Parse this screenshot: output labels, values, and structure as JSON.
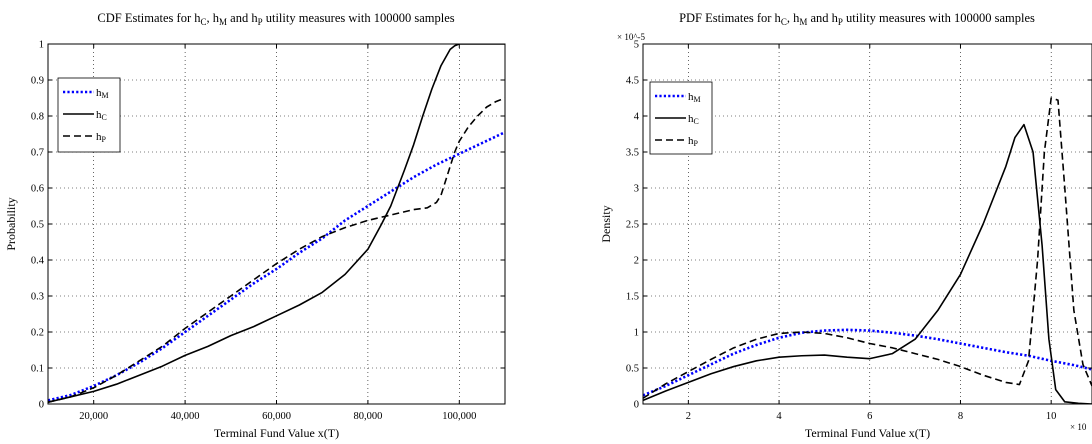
{
  "chart_data": [
    {
      "type": "line",
      "title": "CDF Estimates for h_C, h_M and h_P utility measures with 100000 samples",
      "title_parts": [
        "CDF Estimates for h",
        "C",
        ", h",
        "M",
        " and h",
        "P",
        " utility measures with 100000 samples"
      ],
      "xlabel": "Terminal Fund Value x(T)",
      "ylabel": "Probability",
      "xlim": [
        10000,
        110000
      ],
      "ylim": [
        0,
        1
      ],
      "x_ticks": [
        20000,
        40000,
        60000,
        80000,
        100000
      ],
      "x_tick_labels": [
        "20,000",
        "40,000",
        "60,000",
        "80,000",
        "100,000"
      ],
      "y_ticks": [
        0,
        0.1,
        0.2,
        0.3,
        0.4,
        0.5,
        0.6,
        0.7,
        0.8,
        0.9,
        1
      ],
      "y_tick_labels": [
        "0",
        "0.1",
        "0.2",
        "0.3",
        "0.4",
        "0.5",
        "0.6",
        "0.7",
        "0.8",
        "0.9",
        "1"
      ],
      "grid": true,
      "legend_position": "upper-left",
      "series": [
        {
          "name": "h_M",
          "label_main": "h",
          "label_sub": "M",
          "color": "#0000ff",
          "style": "dotted",
          "x": [
            10000,
            15000,
            20000,
            25000,
            30000,
            35000,
            40000,
            45000,
            50000,
            55000,
            60000,
            65000,
            70000,
            75000,
            80000,
            85000,
            90000,
            95000,
            100000,
            105000,
            110000
          ],
          "y": [
            0.01,
            0.025,
            0.05,
            0.08,
            0.115,
            0.155,
            0.2,
            0.245,
            0.29,
            0.335,
            0.375,
            0.42,
            0.46,
            0.51,
            0.55,
            0.59,
            0.63,
            0.665,
            0.695,
            0.725,
            0.755
          ]
        },
        {
          "name": "h_C",
          "label_main": "h",
          "label_sub": "C",
          "color": "#000000",
          "style": "solid",
          "x": [
            10000,
            15000,
            20000,
            25000,
            30000,
            35000,
            40000,
            45000,
            50000,
            55000,
            60000,
            65000,
            70000,
            75000,
            80000,
            83000,
            85000,
            88000,
            90000,
            92000,
            94000,
            96000,
            98000,
            99000,
            100000,
            101000,
            102000,
            110000
          ],
          "y": [
            0.005,
            0.02,
            0.035,
            0.055,
            0.08,
            0.105,
            0.135,
            0.16,
            0.19,
            0.215,
            0.245,
            0.275,
            0.31,
            0.36,
            0.43,
            0.5,
            0.55,
            0.65,
            0.72,
            0.8,
            0.875,
            0.94,
            0.985,
            0.995,
            1,
            1,
            1,
            1
          ]
        },
        {
          "name": "h_P",
          "label_main": "h",
          "label_sub": "P",
          "color": "#000000",
          "style": "dashed",
          "x": [
            10000,
            15000,
            20000,
            25000,
            30000,
            35000,
            40000,
            45000,
            50000,
            55000,
            60000,
            65000,
            70000,
            75000,
            80000,
            85000,
            90000,
            93000,
            95000,
            96000,
            97000,
            98000,
            99000,
            100000,
            102000,
            104000,
            106000,
            108000,
            110000
          ],
          "y": [
            0.005,
            0.02,
            0.045,
            0.08,
            0.12,
            0.16,
            0.21,
            0.255,
            0.3,
            0.345,
            0.39,
            0.43,
            0.465,
            0.49,
            0.51,
            0.525,
            0.54,
            0.545,
            0.56,
            0.58,
            0.62,
            0.66,
            0.7,
            0.73,
            0.77,
            0.8,
            0.825,
            0.84,
            0.85
          ]
        }
      ]
    },
    {
      "type": "line",
      "title": "PDF Estimates for h_C, h_M and h_P utility measures with 100000 samples",
      "title_parts": [
        "PDF Estimates for h",
        "C",
        ", h",
        "M",
        " and h",
        "P",
        " utility measures with 100000 samples"
      ],
      "xlabel": "Terminal Fund Value x(T)",
      "ylabel": "Density",
      "y_exponent": "× 10^-5",
      "x_exponent": "× 10",
      "xlim": [
        1,
        10.9
      ],
      "ylim": [
        0,
        5
      ],
      "x_ticks": [
        2,
        4,
        6,
        8,
        10
      ],
      "x_tick_labels": [
        "2",
        "4",
        "6",
        "8",
        "10"
      ],
      "y_ticks": [
        0,
        0.5,
        1,
        1.5,
        2,
        2.5,
        3,
        3.5,
        4,
        4.5,
        5
      ],
      "y_tick_labels": [
        "0",
        "0.5",
        "1",
        "1.5",
        "2",
        "2.5",
        "3",
        "3.5",
        "4",
        "4.5",
        "5"
      ],
      "grid": true,
      "legend_position": "upper-left",
      "series": [
        {
          "name": "h_M",
          "label_main": "h",
          "label_sub": "M",
          "color": "#0000ff",
          "style": "dotted",
          "x": [
            1,
            1.5,
            2,
            2.5,
            3,
            3.5,
            4,
            4.5,
            5,
            5.5,
            6,
            6.5,
            7,
            7.5,
            8,
            8.5,
            9,
            9.5,
            10,
            10.5,
            10.9
          ],
          "y": [
            0.12,
            0.25,
            0.4,
            0.55,
            0.7,
            0.82,
            0.92,
            0.99,
            1.02,
            1.03,
            1.02,
            0.99,
            0.95,
            0.9,
            0.84,
            0.78,
            0.72,
            0.67,
            0.6,
            0.54,
            0.48
          ]
        },
        {
          "name": "h_C",
          "label_main": "h",
          "label_sub": "C",
          "color": "#000000",
          "style": "solid",
          "x": [
            1,
            1.5,
            2,
            2.5,
            3,
            3.5,
            4,
            4.5,
            5,
            5.5,
            6,
            6.5,
            7,
            7.5,
            8,
            8.5,
            9,
            9.2,
            9.4,
            9.6,
            9.8,
            9.95,
            10.1,
            10.3,
            10.6,
            10.9
          ],
          "y": [
            0.05,
            0.18,
            0.3,
            0.42,
            0.52,
            0.6,
            0.65,
            0.67,
            0.68,
            0.65,
            0.63,
            0.7,
            0.9,
            1.3,
            1.8,
            2.5,
            3.3,
            3.7,
            3.88,
            3.5,
            2.2,
            0.9,
            0.2,
            0.03,
            0.01,
            0
          ]
        },
        {
          "name": "h_P",
          "label_main": "h",
          "label_sub": "P",
          "color": "#000000",
          "style": "dashed",
          "x": [
            1,
            1.5,
            2,
            2.5,
            3,
            3.5,
            4,
            4.5,
            5,
            5.5,
            6,
            6.5,
            7,
            7.5,
            8,
            8.5,
            9,
            9.3,
            9.5,
            9.7,
            9.85,
            10,
            10.15,
            10.3,
            10.5,
            10.7,
            10.9
          ],
          "y": [
            0.08,
            0.28,
            0.45,
            0.62,
            0.78,
            0.9,
            0.98,
            1.0,
            0.98,
            0.92,
            0.84,
            0.78,
            0.7,
            0.62,
            0.52,
            0.4,
            0.3,
            0.27,
            0.6,
            2.0,
            3.5,
            4.25,
            4.22,
            3.0,
            1.3,
            0.55,
            0.25
          ]
        }
      ]
    }
  ]
}
